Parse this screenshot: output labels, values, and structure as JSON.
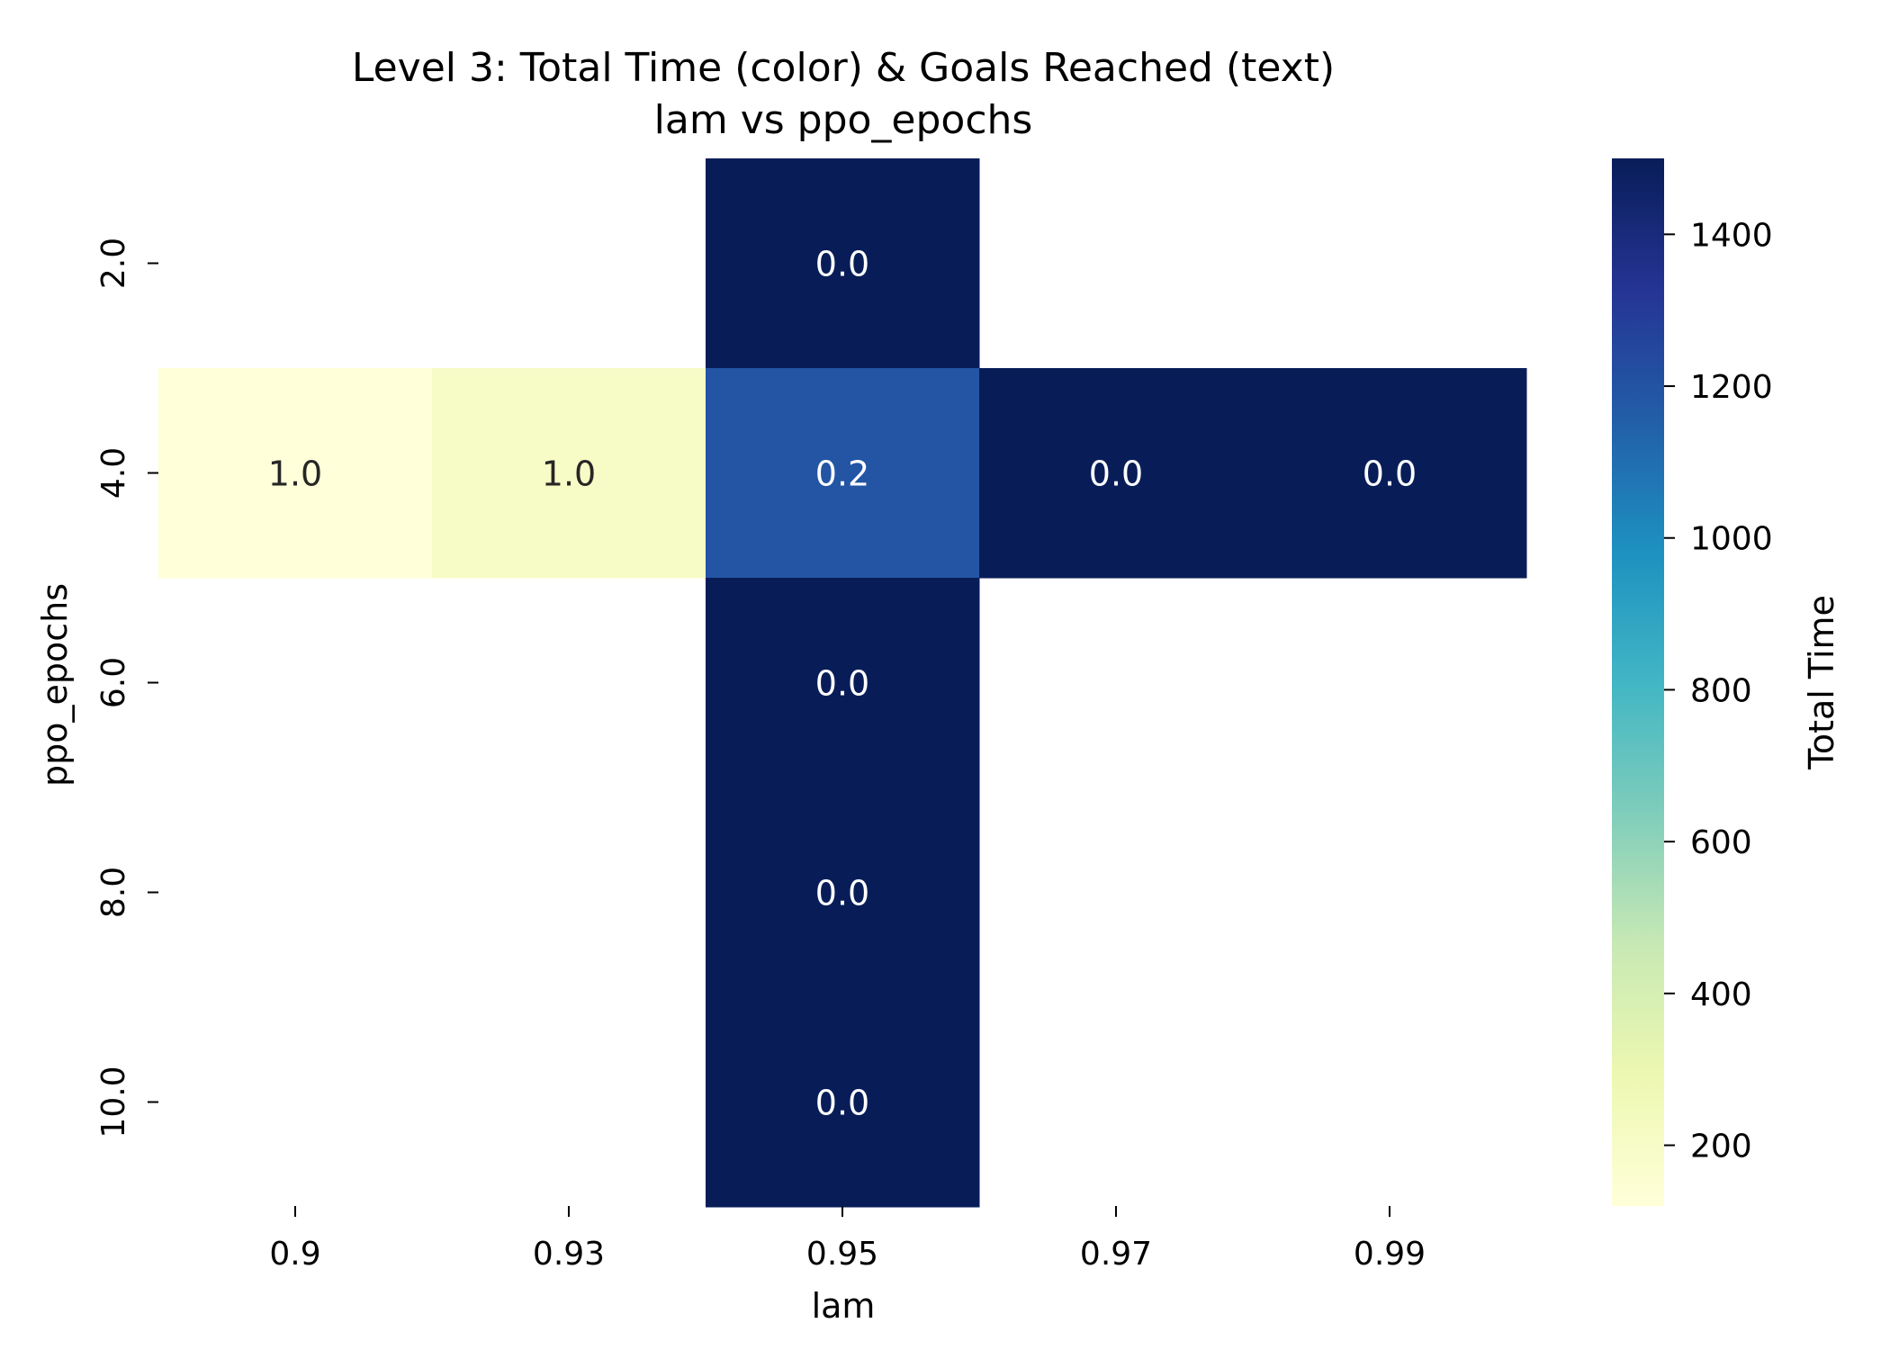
{
  "chart_data": {
    "type": "heatmap",
    "title": "Level 3: Total Time (color) & Goals Reached (text)",
    "subtitle": "lam vs ppo_epochs",
    "xlabel": "lam",
    "ylabel": "ppo_epochs",
    "x_categories": [
      "0.9",
      "0.93",
      "0.95",
      "0.97",
      "0.99"
    ],
    "y_categories": [
      "2.0",
      "4.0",
      "6.0",
      "8.0",
      "10.0"
    ],
    "color_values": [
      [
        null,
        null,
        1500,
        null,
        null
      ],
      [
        120,
        200,
        1190,
        1500,
        1500
      ],
      [
        null,
        null,
        1500,
        null,
        null
      ],
      [
        null,
        null,
        1500,
        null,
        null
      ],
      [
        null,
        null,
        1500,
        null,
        null
      ]
    ],
    "text_values": [
      [
        null,
        null,
        "0.0",
        null,
        null
      ],
      [
        "1.0",
        "1.0",
        "0.2",
        "0.0",
        "0.0"
      ],
      [
        null,
        null,
        "0.0",
        null,
        null
      ],
      [
        null,
        null,
        "0.0",
        null,
        null
      ],
      [
        null,
        null,
        "0.0",
        null,
        null
      ]
    ],
    "colorbar": {
      "label": "Total Time",
      "range": [
        120,
        1500
      ],
      "ticks": [
        "200",
        "400",
        "600",
        "800",
        "1000",
        "1200",
        "1400"
      ],
      "colormap": "YlGnBu"
    },
    "grid": false
  }
}
